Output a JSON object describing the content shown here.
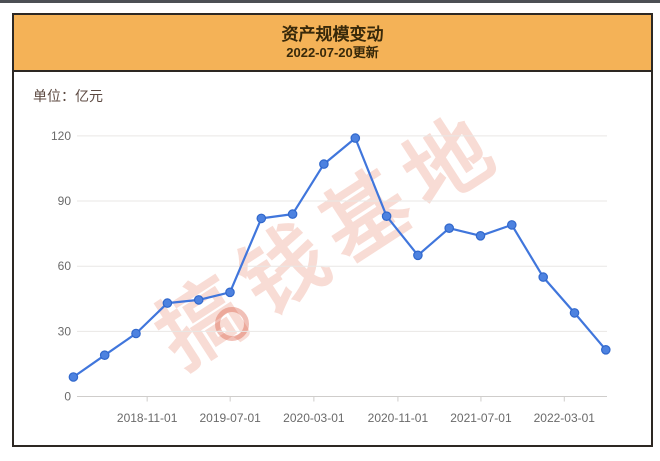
{
  "header": {
    "title": "资产规模变动",
    "subtitle": "2022-07-20更新"
  },
  "chart": {
    "unit_label": "单位：亿元",
    "watermark_text": "搞钱基地"
  },
  "colors": {
    "top_bar": "#4c4f54",
    "card_border": "#2d2823",
    "header_bg": "#f4b257",
    "title_text": "#38290a",
    "unit_text": "#5d4a42",
    "axis_text": "#6a6a6a",
    "gridline": "#e9e7e5",
    "axis_line": "#cfcdcb",
    "line": "#4076dc",
    "point_fill": "#4d82e0",
    "point_stroke": "#3168cc",
    "watermark": "rgba(229,126,101,0.27)",
    "watermark_ring": "rgba(214,74,48,0.35)"
  },
  "chart_data": {
    "type": "line",
    "title": "资产规模变动",
    "subtitle": "2022-07-20更新",
    "ylabel_unit": "亿元",
    "x_estimated_dates": [
      "2018-03-31",
      "2018-06-30",
      "2018-09-30",
      "2018-12-31",
      "2019-03-31",
      "2019-06-30",
      "2019-09-30",
      "2019-12-31",
      "2020-03-31",
      "2020-06-30",
      "2020-09-30",
      "2020-12-31",
      "2021-03-31",
      "2021-06-30",
      "2021-09-30",
      "2021-12-31",
      "2022-03-31",
      "2022-06-30"
    ],
    "values": [
      9,
      19,
      29,
      43,
      44.5,
      48,
      82,
      84,
      107,
      119,
      83,
      65,
      77.5,
      74,
      79,
      55,
      38.5,
      21.5
    ],
    "x_tick_labels": [
      "2018-11-01",
      "2019-07-01",
      "2020-03-01",
      "2020-11-01",
      "2021-07-01",
      "2022-03-01"
    ],
    "y_ticks": [
      0,
      30,
      60,
      90,
      120
    ],
    "ylim": [
      0,
      130
    ],
    "grid": true,
    "legend": "none",
    "marker": "circle"
  }
}
